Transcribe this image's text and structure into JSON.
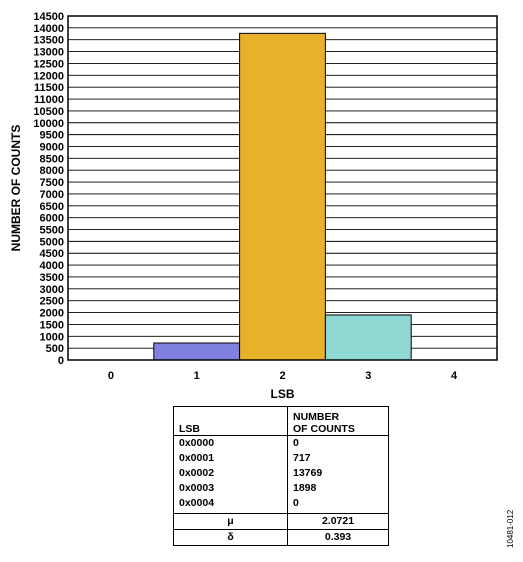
{
  "chart_data": {
    "type": "bar",
    "categories": [
      "0",
      "1",
      "2",
      "3",
      "4"
    ],
    "values": [
      0,
      717,
      13769,
      1898,
      0
    ],
    "bar_colors": [
      "#8080e0",
      "#8080e0",
      "#e8b12a",
      "#8fd8d4",
      "#8fd8d4"
    ],
    "xlabel": "LSB",
    "ylabel": "NUMBER OF COUNTS",
    "ylim": [
      0,
      14500
    ],
    "yticks": [
      "0",
      "500",
      "1000",
      "1500",
      "2000",
      "2500",
      "3000",
      "3500",
      "4000",
      "4500",
      "5000",
      "5500",
      "6000",
      "6500",
      "7000",
      "7500",
      "8000",
      "8500",
      "9000",
      "9500",
      "10000",
      "10500",
      "11000",
      "11500",
      "12000",
      "12500",
      "13000",
      "13500",
      "14000",
      "14500"
    ],
    "grid": true
  },
  "table": {
    "header_lsb": "LSB",
    "header_counts_line1": "NUMBER",
    "header_counts_line2": "OF COUNTS",
    "rows": [
      {
        "lsb": "0x0000",
        "count": "0"
      },
      {
        "lsb": "0x0001",
        "count": "717"
      },
      {
        "lsb": "0x0002",
        "count": "13769"
      },
      {
        "lsb": "0x0003",
        "count": "1898"
      },
      {
        "lsb": "0x0004",
        "count": "0"
      }
    ],
    "mean_symbol": "μ",
    "mean_value": "2.0721",
    "std_symbol": "δ",
    "std_value": "0.393"
  },
  "figure_id": "10481-012"
}
